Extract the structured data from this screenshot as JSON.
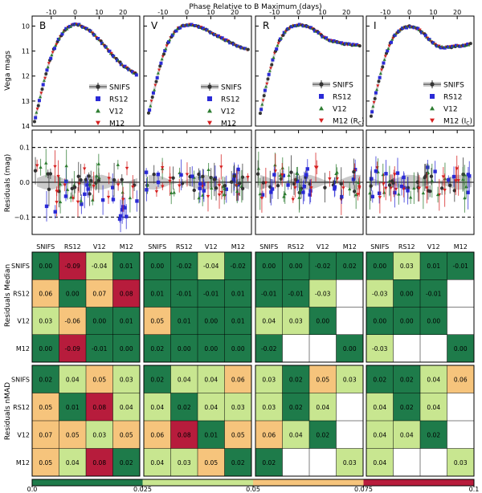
{
  "chart_data": {
    "type": "composite",
    "title": "Phase Relative to B Maximum (days)",
    "bands": [
      "B",
      "V",
      "R",
      "I"
    ],
    "phase_ticks": [
      -10,
      0,
      10,
      20
    ],
    "xlim": [
      -18,
      27
    ],
    "lightcurve": {
      "ylabel": "Vega mags",
      "ylim": [
        14,
        9.6
      ],
      "yticks": [
        10,
        11,
        12,
        13,
        14
      ],
      "series": [
        "SNIFS",
        "RS12",
        "V12",
        "M12"
      ],
      "legend": [
        [
          "SNIFS",
          "RS12",
          "V12",
          "M12"
        ],
        [
          "SNIFS",
          "RS12",
          "V12",
          "M12"
        ],
        [
          "SNIFS",
          "RS12",
          "V12",
          "M12 (R",
          "C",
          ")"
        ],
        [
          "SNIFS",
          "RS12",
          "V12",
          "M12 (I",
          "C",
          ")"
        ]
      ],
      "colors": {
        "SNIFS": "#333333",
        "RS12": "#2a2ad6",
        "V12": "#2e7d32",
        "M12": "#d62020"
      },
      "curves": [
        {
          "band": "B",
          "phase": [
            -17,
            -15,
            -13,
            -11,
            -9,
            -7,
            -5,
            -3,
            -1,
            0,
            2,
            4,
            6,
            8,
            10,
            12,
            14,
            16,
            18,
            20,
            22,
            24,
            26
          ],
          "mag": [
            13.8,
            13.0,
            12.2,
            11.5,
            10.95,
            10.55,
            10.25,
            10.05,
            9.95,
            9.93,
            9.97,
            10.05,
            10.18,
            10.35,
            10.55,
            10.75,
            10.98,
            11.2,
            11.4,
            11.58,
            11.72,
            11.85,
            11.95
          ]
        },
        {
          "band": "V",
          "phase": [
            -16,
            -14,
            -12,
            -10,
            -8,
            -6,
            -4,
            -2,
            0,
            2,
            4,
            6,
            8,
            10,
            12,
            14,
            16,
            18,
            20,
            22,
            24,
            26
          ],
          "mag": [
            13.5,
            12.7,
            11.9,
            11.2,
            10.7,
            10.35,
            10.12,
            10.0,
            9.95,
            9.96,
            10.0,
            10.07,
            10.15,
            10.25,
            10.35,
            10.45,
            10.55,
            10.65,
            10.75,
            10.83,
            10.9,
            10.95
          ]
        },
        {
          "band": "R",
          "phase": [
            -16,
            -14,
            -12,
            -10,
            -8,
            -6,
            -4,
            -2,
            0,
            2,
            4,
            6,
            8,
            10,
            12,
            14,
            16,
            18,
            20,
            22,
            24,
            26
          ],
          "mag": [
            13.5,
            12.6,
            11.8,
            11.1,
            10.6,
            10.28,
            10.08,
            9.98,
            9.95,
            9.97,
            10.02,
            10.12,
            10.25,
            10.4,
            10.52,
            10.6,
            10.65,
            10.7,
            10.72,
            10.74,
            10.76,
            10.78
          ]
        },
        {
          "band": "I",
          "phase": [
            -16,
            -14,
            -12,
            -10,
            -8,
            -6,
            -4,
            -2,
            0,
            2,
            4,
            6,
            8,
            10,
            12,
            14,
            16,
            18,
            20,
            22,
            24,
            26
          ],
          "mag": [
            13.6,
            12.7,
            11.9,
            11.2,
            10.7,
            10.35,
            10.15,
            10.05,
            10.02,
            10.05,
            10.15,
            10.3,
            10.5,
            10.7,
            10.82,
            10.85,
            10.85,
            10.83,
            10.8,
            10.78,
            10.75,
            10.72
          ]
        }
      ]
    },
    "residuals": {
      "ylabel": "Residuals (mag)",
      "ylim": [
        -0.15,
        0.15
      ],
      "yticks": [
        -0.1,
        0.0,
        0.1
      ],
      "ytick_labels": [
        "−0.1",
        "0.0",
        "0.1"
      ],
      "reference_lines": [
        0.1,
        -0.1
      ]
    },
    "matrices": {
      "labels": [
        "SNIFS",
        "RS12",
        "V12",
        "M12"
      ],
      "median": {
        "ylabel": "Residuals Median",
        "panels": [
          [
            [
              "0.00",
              "-0.09",
              "-0.04",
              "0.01"
            ],
            [
              "0.06",
              "0.00",
              "0.07",
              "0.08"
            ],
            [
              "0.03",
              "-0.06",
              "0.00",
              "0.01"
            ],
            [
              "0.00",
              "-0.09",
              "-0.01",
              "0.00"
            ]
          ],
          [
            [
              "0.00",
              "-0.02",
              "-0.04",
              "-0.02"
            ],
            [
              "0.01",
              "-0.01",
              "-0.01",
              "0.01"
            ],
            [
              "0.05",
              "0.01",
              "0.00",
              "0.01"
            ],
            [
              "0.02",
              "0.00",
              "0.00",
              "0.00"
            ]
          ],
          [
            [
              "0.00",
              "0.00",
              "-0.02",
              "0.02"
            ],
            [
              "-0.01",
              "-0.01",
              "-0.03",
              null
            ],
            [
              "0.04",
              "0.03",
              "0.00",
              null
            ],
            [
              "-0.02",
              null,
              null,
              "0.00"
            ]
          ],
          [
            [
              "0.00",
              "0.03",
              "0.01",
              "-0.01"
            ],
            [
              "-0.03",
              "0.00",
              "-0.01",
              null
            ],
            [
              "0.00",
              "0.00",
              "0.00",
              null
            ],
            [
              "-0.03",
              null,
              null,
              "0.00"
            ]
          ]
        ]
      },
      "nmad": {
        "ylabel": "Residuals nMAD",
        "panels": [
          [
            [
              "0.02",
              "0.04",
              "0.05",
              "0.03"
            ],
            [
              "0.05",
              "0.01",
              "0.08",
              "0.04"
            ],
            [
              "0.07",
              "0.05",
              "0.03",
              "0.05"
            ],
            [
              "0.05",
              "0.04",
              "0.08",
              "0.02"
            ]
          ],
          [
            [
              "0.02",
              "0.04",
              "0.04",
              "0.06"
            ],
            [
              "0.04",
              "0.02",
              "0.04",
              "0.03"
            ],
            [
              "0.06",
              "0.08",
              "0.01",
              "0.05"
            ],
            [
              "0.04",
              "0.03",
              "0.05",
              "0.02"
            ]
          ],
          [
            [
              "0.03",
              "0.02",
              "0.05",
              "0.03"
            ],
            [
              "0.03",
              "0.02",
              "0.04",
              null
            ],
            [
              "0.06",
              "0.04",
              "0.02",
              null
            ],
            [
              "0.02",
              null,
              null,
              "0.03"
            ]
          ],
          [
            [
              "0.02",
              "0.02",
              "0.04",
              "0.06"
            ],
            [
              "0.04",
              "0.02",
              "0.04",
              null
            ],
            [
              "0.04",
              "0.04",
              "0.02",
              null
            ],
            [
              "0.04",
              null,
              null,
              "0.03"
            ]
          ]
        ]
      }
    },
    "colorbar": {
      "boundaries": [
        0.0,
        0.025,
        0.05,
        0.075,
        0.1
      ],
      "tick_labels": [
        "0.0",
        "0.025",
        "0.05",
        "0.075",
        "0.1"
      ],
      "colors": [
        "#1e7b4a",
        "#c8e690",
        "#f6c47c",
        "#b71c3c"
      ]
    }
  }
}
